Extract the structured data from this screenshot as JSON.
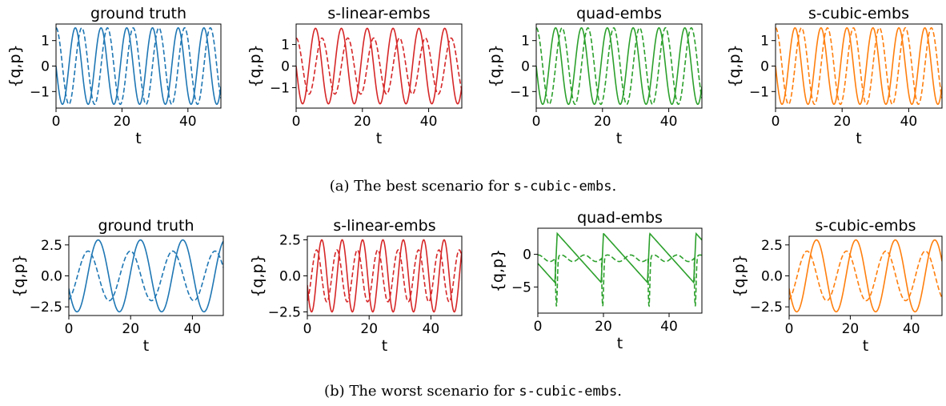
{
  "captions": [
    {
      "prefix": "(a) The best scenario for ",
      "code": "s-cubic-embs",
      "suffix": "."
    },
    {
      "prefix": "(b) The worst scenario for ",
      "code": "s-cubic-embs",
      "suffix": "."
    }
  ],
  "colors": {
    "blue": "#1f77b4",
    "red": "#d62728",
    "green": "#2ca02c",
    "orange": "#ff7f0e"
  },
  "chart_data": [
    {
      "type": "line",
      "title": "ground truth",
      "xlabel": "t",
      "ylabel": "{q,p}",
      "xlim": [
        0,
        50
      ],
      "ylim": [
        -1.65,
        1.65
      ],
      "xticks": [
        0,
        20,
        40
      ],
      "yticks": [
        -1,
        0,
        1
      ],
      "color": "#1f77b4",
      "series": [
        {
          "style": "solid",
          "amplitude": 1.5,
          "period": 7.8,
          "phase": 3.14
        },
        {
          "style": "dashed",
          "amplitude": 1.5,
          "period": 7.8,
          "phase": 1.57
        }
      ]
    },
    {
      "type": "line",
      "title": "s-linear-embs",
      "xlabel": "t",
      "ylabel": "{q,p}",
      "xlim": [
        0,
        50
      ],
      "ylim": [
        -1.95,
        1.95
      ],
      "xticks": [
        0,
        20,
        40
      ],
      "yticks": [
        -1,
        0,
        1
      ],
      "color": "#d62728",
      "series": [
        {
          "style": "solid",
          "amplitude": 1.75,
          "period": 7.8,
          "phase": 3.14
        },
        {
          "style": "dashed",
          "amplitude": 1.3,
          "period": 7.8,
          "phase": 1.57
        }
      ]
    },
    {
      "type": "line",
      "title": "quad-embs",
      "xlabel": "t",
      "ylabel": "{q,p}",
      "xlim": [
        0,
        50
      ],
      "ylim": [
        -1.65,
        1.65
      ],
      "xticks": [
        0,
        20,
        40
      ],
      "yticks": [
        -1,
        0,
        1
      ],
      "color": "#2ca02c",
      "series": [
        {
          "style": "solid",
          "amplitude": 1.5,
          "period": 7.8,
          "phase": 3.14
        },
        {
          "style": "dashed",
          "amplitude": 1.5,
          "period": 7.8,
          "phase": 1.57
        }
      ]
    },
    {
      "type": "line",
      "title": "s-cubic-embs",
      "xlabel": "t",
      "ylabel": "{q,p}",
      "xlim": [
        0,
        50
      ],
      "ylim": [
        -1.65,
        1.65
      ],
      "xticks": [
        0,
        20,
        40
      ],
      "yticks": [
        -1,
        0,
        1
      ],
      "color": "#ff7f0e",
      "series": [
        {
          "style": "solid",
          "amplitude": 1.5,
          "period": 7.8,
          "phase": 3.14
        },
        {
          "style": "dashed",
          "amplitude": 1.5,
          "period": 7.8,
          "phase": 1.57
        }
      ]
    },
    {
      "type": "line",
      "title": "ground truth",
      "xlabel": "t",
      "ylabel": "{q,p}",
      "xlim": [
        0,
        50
      ],
      "ylim": [
        -3.2,
        3.2
      ],
      "xticks": [
        0,
        20,
        40
      ],
      "yticks": [
        -2.5,
        0.0,
        2.5
      ],
      "ytick_labels": [
        "−2.5",
        "0.0",
        "2.5"
      ],
      "color": "#1f77b4",
      "series": [
        {
          "style": "solid",
          "amplitude": 2.9,
          "period": 13.7,
          "phase": 3.5
        },
        {
          "style": "dashed",
          "amplitude": 2.0,
          "period": 13.7,
          "phase": 5.0
        }
      ]
    },
    {
      "type": "line",
      "title": "s-linear-embs",
      "xlabel": "t",
      "ylabel": "{q,p}",
      "xlim": [
        0,
        50
      ],
      "ylim": [
        -2.75,
        2.75
      ],
      "xticks": [
        0,
        20,
        40
      ],
      "yticks": [
        -2.5,
        0.0,
        2.5
      ],
      "ytick_labels": [
        "−2.5",
        "0.0",
        "2.5"
      ],
      "color": "#d62728",
      "series": [
        {
          "style": "solid",
          "amplitude": 2.5,
          "period": 6.6,
          "phase": 3.4
        },
        {
          "style": "dashed",
          "amplitude": 1.8,
          "period": 6.6,
          "phase": 5.0
        }
      ]
    },
    {
      "type": "line",
      "title": "quad-embs",
      "xlabel": "t",
      "ylabel": "{q,p}",
      "xlim": [
        0,
        50
      ],
      "ylim": [
        -9,
        4
      ],
      "xticks": [
        0,
        20,
        40
      ],
      "yticks": [
        -5,
        0
      ],
      "ytick_labels": [
        "−5",
        "0"
      ],
      "color": "#2ca02c",
      "series": [
        {
          "style": "solid",
          "kind": "sawtooth",
          "period": 14.1,
          "phase": 5.2
        },
        {
          "style": "dashed",
          "kind": "spikes",
          "period": 14.1,
          "phase": 5.4
        }
      ]
    },
    {
      "type": "line",
      "title": "s-cubic-embs",
      "xlabel": "t",
      "ylabel": "{q,p}",
      "xlim": [
        0,
        50
      ],
      "ylim": [
        -3.2,
        3.2
      ],
      "xticks": [
        0,
        20,
        40
      ],
      "yticks": [
        -2.5,
        0.0,
        2.5
      ],
      "ytick_labels": [
        "−2.5",
        "0.0",
        "2.5"
      ],
      "color": "#ff7f0e",
      "series": [
        {
          "style": "solid",
          "amplitude": 2.9,
          "period": 12.9,
          "phase": 3.5
        },
        {
          "style": "dashed",
          "amplitude": 2.0,
          "period": 12.9,
          "phase": 5.0
        }
      ]
    }
  ]
}
